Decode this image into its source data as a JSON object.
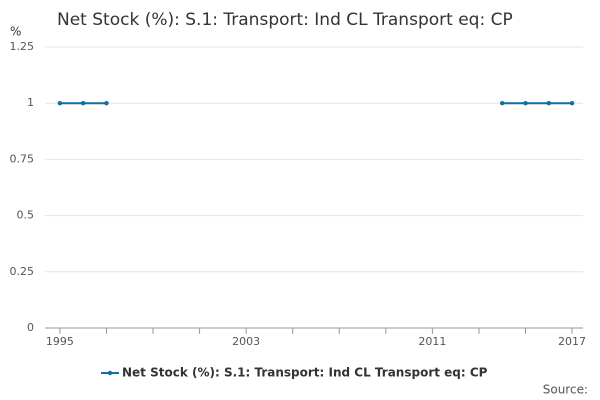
{
  "chart_data": {
    "type": "line",
    "title": "Net Stock (%): S.1: Transport: Ind CL Transport eq: CP",
    "y_label": "%",
    "source": "Source:",
    "x": [
      1995,
      1996,
      1997,
      1998,
      1999,
      2000,
      2001,
      2002,
      2003,
      2004,
      2005,
      2006,
      2007,
      2008,
      2009,
      2010,
      2011,
      2012,
      2013,
      2014,
      2015,
      2016,
      2017
    ],
    "series": [
      {
        "name": "Net Stock (%): S.1: Transport: Ind CL Transport eq: CP",
        "color": "#0f6fa3",
        "values": [
          1,
          1,
          1,
          null,
          null,
          null,
          null,
          null,
          null,
          null,
          null,
          null,
          null,
          null,
          null,
          null,
          null,
          null,
          null,
          1,
          1,
          1,
          1
        ]
      }
    ],
    "xlim": [
      1994.36,
      2017.47
    ],
    "xticks": [
      1995,
      2003,
      2011,
      2017
    ],
    "xminorticks": [
      1997,
      1999,
      2001,
      2005,
      2007,
      2009,
      2013,
      2015
    ],
    "ylim": [
      0,
      1.25
    ],
    "yticks": [
      0,
      0.25,
      0.5,
      0.75,
      1,
      1.25
    ],
    "grid": true
  }
}
